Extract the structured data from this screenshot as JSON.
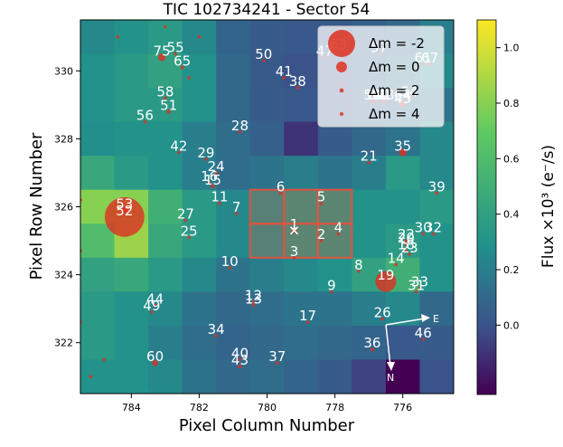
{
  "chart_data": {
    "type": "heatmap",
    "title": "TIC 102734241 - Sector 54",
    "xlabel": "Pixel Column Number",
    "ylabel": "Pixel Row Number",
    "x_axis_inverted": true,
    "xlim": [
      785.5,
      774.5
    ],
    "ylim": [
      320.5,
      331.5
    ],
    "xticks": [
      784,
      782,
      780,
      778,
      776
    ],
    "yticks": [
      322,
      324,
      326,
      328,
      330
    ],
    "xtick_labels": [
      "784",
      "782",
      "780",
      "778",
      "776"
    ],
    "ytick_labels": [
      "322",
      "324",
      "326",
      "328",
      "330"
    ],
    "columns": [
      785,
      784,
      783,
      782,
      781,
      780,
      779,
      778,
      777,
      776,
      775
    ],
    "rows": [
      331,
      330,
      329,
      328,
      327,
      326,
      325,
      324,
      323,
      322,
      321
    ],
    "flux_grid": [
      [
        0.25,
        0.3,
        0.35,
        0.25,
        0.08,
        0.04,
        0.02,
        0.03,
        0.06,
        0.1,
        0.2
      ],
      [
        0.3,
        0.35,
        0.4,
        0.3,
        0.1,
        0.03,
        0.0,
        0.0,
        0.08,
        0.15,
        0.25
      ],
      [
        0.3,
        0.35,
        0.35,
        0.3,
        0.1,
        0.04,
        0.02,
        0.02,
        0.06,
        0.1,
        0.15
      ],
      [
        0.28,
        0.3,
        0.3,
        0.2,
        0.12,
        0.06,
        -0.1,
        0.04,
        0.1,
        0.15,
        0.25
      ],
      [
        0.45,
        0.35,
        0.3,
        0.2,
        0.12,
        0.15,
        0.2,
        0.15,
        0.2,
        0.35,
        0.25
      ],
      [
        0.8,
        0.8,
        0.5,
        0.35,
        0.25,
        0.3,
        0.35,
        0.35,
        0.3,
        0.3,
        0.35
      ],
      [
        0.6,
        0.85,
        0.45,
        0.35,
        0.25,
        0.3,
        0.35,
        0.35,
        0.3,
        0.35,
        0.3
      ],
      [
        0.4,
        0.45,
        0.35,
        0.25,
        0.15,
        0.2,
        0.25,
        0.3,
        0.4,
        0.5,
        0.3
      ],
      [
        0.35,
        0.3,
        0.25,
        0.15,
        0.1,
        0.12,
        0.15,
        0.15,
        0.2,
        0.25,
        0.1
      ],
      [
        0.35,
        0.3,
        0.2,
        0.12,
        0.08,
        0.1,
        0.12,
        0.1,
        0.08,
        0.02,
        0.04
      ],
      [
        0.3,
        0.3,
        0.25,
        0.15,
        0.1,
        0.12,
        0.08,
        0.04,
        -0.05,
        -0.25,
        0.0
      ]
    ],
    "aperture_pixels": [
      [
        780,
        326
      ],
      [
        779,
        326
      ],
      [
        778,
        326
      ],
      [
        780,
        325
      ],
      [
        779,
        325
      ],
      [
        778,
        325
      ]
    ],
    "aperture_color": "#e0523f",
    "stars": [
      {
        "id": "1",
        "x": 779.2,
        "y": 325.3,
        "dm": 2.2
      },
      {
        "id": "2",
        "x": 778.4,
        "y": 325.0,
        "dm": 4.0
      },
      {
        "id": "3",
        "x": 779.2,
        "y": 324.5,
        "dm": 3.5
      },
      {
        "id": "4",
        "x": 777.9,
        "y": 325.2,
        "dm": 4.5
      },
      {
        "id": "5",
        "x": 778.4,
        "y": 326.1,
        "dm": 4.5
      },
      {
        "id": "6",
        "x": 779.6,
        "y": 326.4,
        "dm": 3.3
      },
      {
        "id": "7",
        "x": 780.9,
        "y": 325.8,
        "dm": 3.5
      },
      {
        "id": "8",
        "x": 777.3,
        "y": 324.1,
        "dm": 4.3
      },
      {
        "id": "9",
        "x": 778.1,
        "y": 323.5,
        "dm": 3.5
      },
      {
        "id": "10",
        "x": 781.1,
        "y": 324.2,
        "dm": 3.2
      },
      {
        "id": "11",
        "x": 781.4,
        "y": 326.1,
        "dm": 3.8
      },
      {
        "id": "12",
        "x": 780.4,
        "y": 323.2,
        "dm": 3.6
      },
      {
        "id": "13",
        "x": 780.4,
        "y": 323.1,
        "dm": 3.8
      },
      {
        "id": "14",
        "x": 776.2,
        "y": 324.3,
        "dm": 3.5
      },
      {
        "id": "15",
        "x": 781.6,
        "y": 326.6,
        "dm": 2.8
      },
      {
        "id": "16",
        "x": 781.7,
        "y": 326.7,
        "dm": 3.0
      },
      {
        "id": "17",
        "x": 778.8,
        "y": 322.6,
        "dm": 4.5
      },
      {
        "id": "18",
        "x": 775.9,
        "y": 324.7,
        "dm": 4.0
      },
      {
        "id": "19",
        "x": 776.5,
        "y": 323.8,
        "dm": -0.8
      },
      {
        "id": "20",
        "x": 775.9,
        "y": 324.9,
        "dm": 4.2
      },
      {
        "id": "21",
        "x": 777.0,
        "y": 327.3,
        "dm": 3.3
      },
      {
        "id": "22",
        "x": 775.9,
        "y": 325.0,
        "dm": 4.4
      },
      {
        "id": "23",
        "x": 775.8,
        "y": 324.6,
        "dm": 4.2
      },
      {
        "id": "24",
        "x": 781.5,
        "y": 327.0,
        "dm": 4.4
      },
      {
        "id": "25",
        "x": 782.3,
        "y": 325.1,
        "dm": 3.6
      },
      {
        "id": "26",
        "x": 776.6,
        "y": 322.7,
        "dm": 4.4
      },
      {
        "id": "27",
        "x": 782.4,
        "y": 325.6,
        "dm": 4.3
      },
      {
        "id": "28",
        "x": 780.8,
        "y": 328.2,
        "dm": 3.6
      },
      {
        "id": "29",
        "x": 781.8,
        "y": 327.4,
        "dm": 4.4
      },
      {
        "id": "30",
        "x": 775.4,
        "y": 325.2,
        "dm": 4.5
      },
      {
        "id": "31",
        "x": 775.6,
        "y": 323.5,
        "dm": 4.4
      },
      {
        "id": "32",
        "x": 775.1,
        "y": 325.2,
        "dm": 4.5
      },
      {
        "id": "33",
        "x": 775.5,
        "y": 323.6,
        "dm": 4.4
      },
      {
        "id": "34",
        "x": 781.5,
        "y": 322.2,
        "dm": 4.4
      },
      {
        "id": "35",
        "x": 776.0,
        "y": 327.6,
        "dm": 1.4
      },
      {
        "id": "36",
        "x": 776.9,
        "y": 321.8,
        "dm": 3.0
      },
      {
        "id": "37",
        "x": 779.7,
        "y": 321.4,
        "dm": 4.5
      },
      {
        "id": "38",
        "x": 779.1,
        "y": 329.5,
        "dm": 4.3
      },
      {
        "id": "39",
        "x": 775.0,
        "y": 326.4,
        "dm": 4.4
      },
      {
        "id": "40",
        "x": 780.8,
        "y": 321.5,
        "dm": 4.0
      },
      {
        "id": "41",
        "x": 779.5,
        "y": 329.8,
        "dm": 4.3
      },
      {
        "id": "42",
        "x": 782.6,
        "y": 327.6,
        "dm": 4.4
      },
      {
        "id": "43",
        "x": 780.8,
        "y": 321.3,
        "dm": 2.8
      },
      {
        "id": "44",
        "x": 783.3,
        "y": 323.1,
        "dm": 4.5
      },
      {
        "id": "45",
        "x": 776.0,
        "y": 329.0,
        "dm": 2.4
      },
      {
        "id": "46",
        "x": 775.4,
        "y": 322.1,
        "dm": 4.2
      },
      {
        "id": "47",
        "x": 778.3,
        "y": 330.4,
        "dm": 4.3
      },
      {
        "id": "48",
        "x": 776.5,
        "y": 329.1,
        "dm": 4.5
      },
      {
        "id": "49",
        "x": 783.4,
        "y": 322.9,
        "dm": 4.0
      },
      {
        "id": "50",
        "x": 780.1,
        "y": 330.3,
        "dm": 4.5
      },
      {
        "id": "51",
        "x": 782.9,
        "y": 328.8,
        "dm": 2.7
      },
      {
        "id": "52",
        "x": 784.2,
        "y": 325.7,
        "dm": -2.2
      },
      {
        "id": "53",
        "x": 784.2,
        "y": 325.9,
        "dm": 1.5
      },
      {
        "id": "54",
        "x": 775.8,
        "y": 329.2,
        "dm": 4.4
      },
      {
        "id": "55",
        "x": 782.7,
        "y": 330.5,
        "dm": 4.5
      },
      {
        "id": "56",
        "x": 783.6,
        "y": 328.5,
        "dm": 3.3
      },
      {
        "id": "57",
        "x": 776.7,
        "y": 330.5,
        "dm": 4.3
      },
      {
        "id": "58",
        "x": 783.0,
        "y": 329.2,
        "dm": 4.5
      },
      {
        "id": "59",
        "x": 776.9,
        "y": 329.1,
        "dm": 4.5
      },
      {
        "id": "60",
        "x": 783.3,
        "y": 321.4,
        "dm": 1.9
      },
      {
        "id": "61",
        "x": 775.4,
        "y": 330.2,
        "dm": 4.4
      },
      {
        "id": "62",
        "x": 776.6,
        "y": 329.1,
        "dm": 4.5
      },
      {
        "id": "63",
        "x": 777.9,
        "y": 330.6,
        "dm": 4.4
      },
      {
        "id": "64",
        "x": 776.0,
        "y": 329.1,
        "dm": 4.5
      },
      {
        "id": "65",
        "x": 782.5,
        "y": 330.1,
        "dm": 3.0
      },
      {
        "id": "66",
        "x": 776.8,
        "y": 329.1,
        "dm": 4.5
      },
      {
        "id": "67",
        "x": 775.2,
        "y": 330.2,
        "dm": 4.0
      },
      {
        "id": "75",
        "x": 783.1,
        "y": 330.4,
        "dm": 1.4
      }
    ],
    "background_stars": [
      {
        "x": 785.5,
        "y": 326.2,
        "dm": 4.0
      },
      {
        "x": 785.5,
        "y": 324.7,
        "dm": 4.0
      },
      {
        "x": 785.5,
        "y": 322.6,
        "dm": 3.3
      },
      {
        "x": 785.2,
        "y": 321.0,
        "dm": 3.6
      },
      {
        "x": 784.8,
        "y": 321.5,
        "dm": 4.0
      },
      {
        "x": 784.4,
        "y": 331.0,
        "dm": 3.6
      },
      {
        "x": 782.0,
        "y": 331.0,
        "dm": 3.6
      },
      {
        "x": 783.0,
        "y": 331.3,
        "dm": 4.3
      },
      {
        "x": 782.3,
        "y": 329.8,
        "dm": 4.4
      },
      {
        "x": 777.8,
        "y": 329.6,
        "dm": 4.4
      }
    ],
    "legend": {
      "entries": [
        {
          "label": "Δm =  -2",
          "dm": -2
        },
        {
          "label": "Δm =  0",
          "dm": 0
        },
        {
          "label": "Δm =  2",
          "dm": 2
        },
        {
          "label": "Δm =  4",
          "dm": 4
        }
      ],
      "location": "upper right"
    },
    "colorbar": {
      "label": "Flux ×10³ (e⁻/s)",
      "ticks": [
        {
          "value": 0.0,
          "label": "0.0"
        },
        {
          "value": 0.2,
          "label": "0.2"
        },
        {
          "value": 0.4,
          "label": "0.4"
        },
        {
          "value": 0.6,
          "label": "0.6"
        },
        {
          "value": 0.8,
          "label": "0.8"
        },
        {
          "value": 1.0,
          "label": "1.0"
        }
      ],
      "range": [
        -0.25,
        1.1
      ],
      "colors": [
        "#440154",
        "#3b528b",
        "#21918c",
        "#5ec962",
        "#fde725"
      ]
    },
    "compass": {
      "east": "E",
      "north": "N"
    },
    "marker_color": "#dd3020"
  }
}
